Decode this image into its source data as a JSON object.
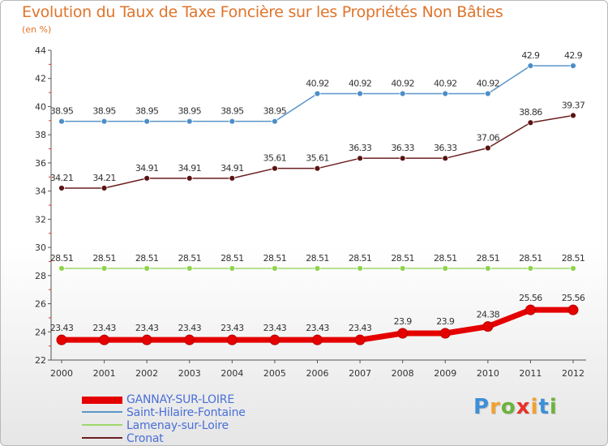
{
  "header": {
    "title": "Evolution du Taux de Taxe Foncière sur les Propriétés Non Bâties",
    "unit": "(en %)"
  },
  "chart_data": {
    "type": "line",
    "title": "Evolution du Taux de Taxe Foncière sur les Propriétés Non Bâties",
    "ylabel": "(en %)",
    "xlabel": "",
    "ylim": [
      22,
      44
    ],
    "yticks": [
      22,
      24,
      26,
      28,
      30,
      32,
      34,
      36,
      38,
      40,
      42,
      44
    ],
    "grid": false,
    "legend_position": "bottom-left",
    "x": [
      "2000",
      "2001",
      "2002",
      "2003",
      "2004",
      "2005",
      "2006",
      "2007",
      "2008",
      "2009",
      "2010",
      "2011",
      "2012"
    ],
    "series": [
      {
        "name": "GANNAY-SUR-LOIRE",
        "color": "#e50000",
        "values": [
          23.43,
          23.43,
          23.43,
          23.43,
          23.43,
          23.43,
          23.43,
          23.43,
          23.9,
          23.9,
          24.38,
          25.56,
          25.56
        ],
        "labels": [
          "23.43",
          "23.43",
          "23.43",
          "23.43",
          "23.43",
          "23.43",
          "23.43",
          "23.43",
          "23.9",
          "23.9",
          "24.38",
          "25.56",
          "25.56"
        ]
      },
      {
        "name": "Saint-Hilaire-Fontaine",
        "color": "#5b95c9",
        "values": [
          38.95,
          38.95,
          38.95,
          38.95,
          38.95,
          38.95,
          40.92,
          40.92,
          40.92,
          40.92,
          40.92,
          42.9,
          42.9
        ],
        "labels": [
          "38.95",
          "38.95",
          "38.95",
          "38.95",
          "38.95",
          "38.95",
          "40.92",
          "40.92",
          "40.92",
          "40.92",
          "40.92",
          "42.9",
          "42.9"
        ]
      },
      {
        "name": "Lamenay-sur-Loire",
        "color": "#9ed76b",
        "values": [
          28.51,
          28.51,
          28.51,
          28.51,
          28.51,
          28.51,
          28.51,
          28.51,
          28.51,
          28.51,
          28.51,
          28.51,
          28.51
        ],
        "labels": [
          "28.51",
          "28.51",
          "28.51",
          "28.51",
          "28.51",
          "28.51",
          "28.51",
          "28.51",
          "28.51",
          "28.51",
          "28.51",
          "28.51",
          "28.51"
        ]
      },
      {
        "name": "Cronat",
        "color": "#6b1f1f",
        "values": [
          34.21,
          34.21,
          34.91,
          34.91,
          34.91,
          35.61,
          35.61,
          36.33,
          36.33,
          36.33,
          37.06,
          38.86,
          39.37
        ],
        "labels": [
          "34.21",
          "34.21",
          "34.91",
          "34.91",
          "34.91",
          "35.61",
          "35.61",
          "36.33",
          "36.33",
          "36.33",
          "37.06",
          "38.86",
          "39.37"
        ]
      }
    ]
  },
  "logo": {
    "text": "Proxiti"
  }
}
